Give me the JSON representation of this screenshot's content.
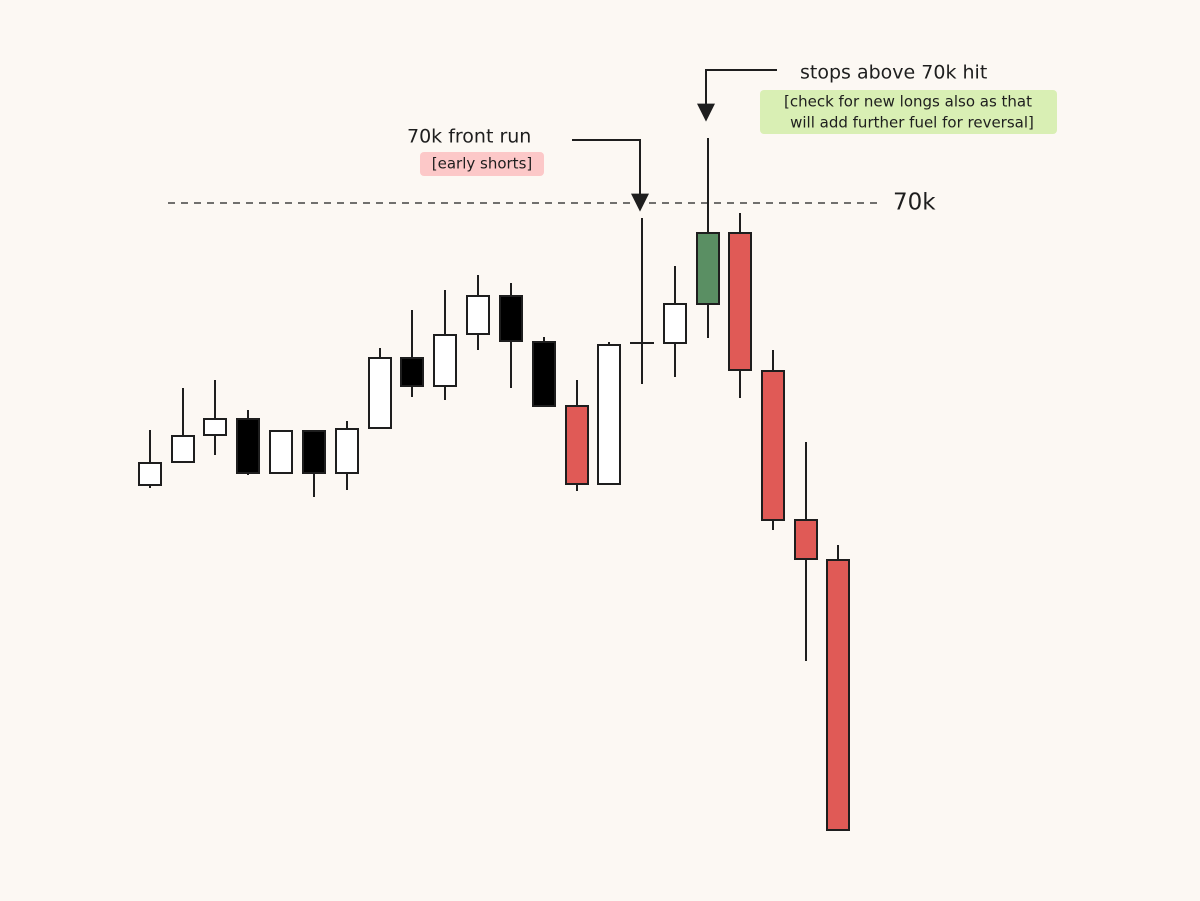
{
  "annotations": {
    "front_run": {
      "title": "70k front run",
      "note": "[early shorts]"
    },
    "stops": {
      "title": "stops above 70k hit",
      "note_lines": [
        "[check for new longs also as that",
        "will add further fuel for reversal]"
      ]
    },
    "level_label": "70k"
  }
}
